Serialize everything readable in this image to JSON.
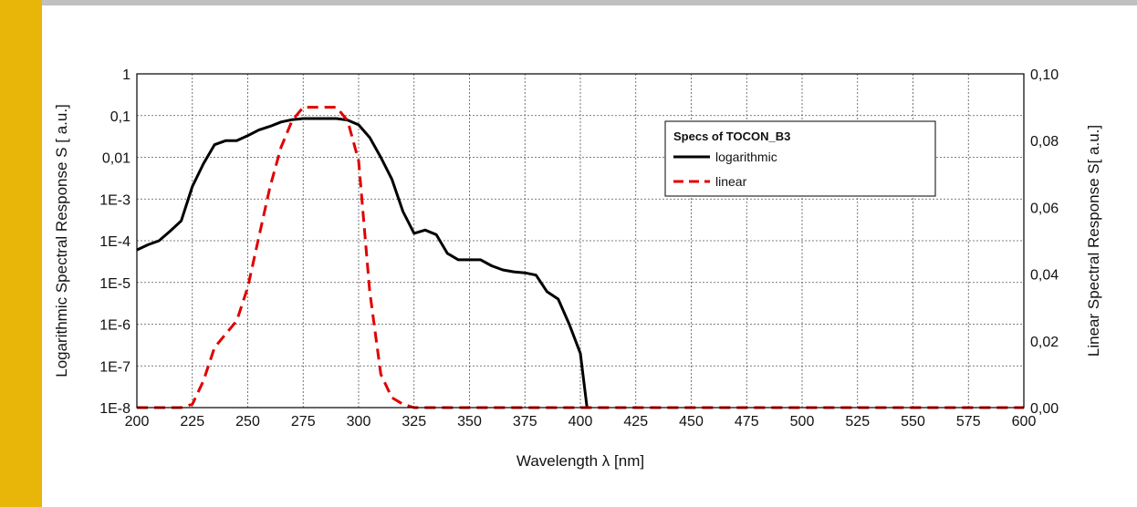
{
  "colors": {
    "accent_bar": "#e8b608",
    "log_series": "#000000",
    "linear_series": "#e00000",
    "grid": "#555555"
  },
  "chart_data": {
    "type": "line",
    "grid": true,
    "x_axis": {
      "label": "Wavelength λ [nm]",
      "range": [
        200,
        600
      ],
      "ticks": [
        200,
        225,
        250,
        275,
        300,
        325,
        350,
        375,
        400,
        425,
        450,
        475,
        500,
        525,
        550,
        575,
        600
      ],
      "tick_labels": [
        "200",
        "225",
        "250",
        "275",
        "300",
        "325",
        "350",
        "375",
        "400",
        "425",
        "450",
        "475",
        "500",
        "525",
        "550",
        "575",
        "600"
      ]
    },
    "y_left": {
      "label": "Logarithmic Spectral Response S [ a.u.]",
      "scale": "log",
      "range": [
        1e-08,
        1
      ],
      "ticks": [
        1e-08,
        1e-07,
        1e-06,
        1e-05,
        0.0001,
        0.001,
        0.01,
        0.1,
        1
      ],
      "tick_labels": [
        "1E-8",
        "1E-7",
        "1E-6",
        "1E-5",
        "1E-4",
        "1E-3",
        "0,01",
        "0,1",
        "1"
      ]
    },
    "y_right": {
      "label": "Linear Spectral Response S[ a.u.]",
      "scale": "linear",
      "range": [
        0,
        0.1
      ],
      "ticks": [
        0,
        0.02,
        0.04,
        0.06,
        0.08,
        0.1
      ],
      "tick_labels": [
        "0,00",
        "0,02",
        "0,04",
        "0,06",
        "0,08",
        "0,10"
      ]
    },
    "legend": {
      "title": "Specs of TOCON_B3",
      "placement": "top-right",
      "entries": [
        "logarithmic",
        "linear"
      ]
    },
    "series": [
      {
        "name": "logarithmic",
        "axis": "left",
        "style": "solid",
        "x": [
          200,
          205,
          210,
          215,
          220,
          225,
          230,
          235,
          240,
          245,
          250,
          255,
          260,
          265,
          270,
          275,
          280,
          285,
          290,
          295,
          300,
          305,
          310,
          315,
          320,
          325,
          330,
          335,
          340,
          345,
          350,
          355,
          360,
          365,
          370,
          375,
          380,
          385,
          390,
          395,
          400,
          403
        ],
        "y": [
          6e-05,
          8e-05,
          0.0001,
          0.00017,
          0.0003,
          0.002,
          0.007,
          0.02,
          0.025,
          0.025,
          0.033,
          0.045,
          0.055,
          0.07,
          0.08,
          0.085,
          0.085,
          0.085,
          0.085,
          0.078,
          0.06,
          0.03,
          0.01,
          0.003,
          0.0005,
          0.00015,
          0.00018,
          0.00014,
          5e-05,
          3.5e-05,
          3.5e-05,
          3.5e-05,
          2.5e-05,
          2e-05,
          1.8e-05,
          1.7e-05,
          1.5e-05,
          6e-06,
          4e-06,
          1e-06,
          2e-07,
          1e-08
        ]
      },
      {
        "name": "linear",
        "axis": "right",
        "style": "dashed",
        "x": [
          200,
          210,
          220,
          225,
          230,
          235,
          240,
          245,
          250,
          255,
          260,
          265,
          270,
          275,
          280,
          285,
          290,
          295,
          300,
          305,
          310,
          315,
          320,
          325,
          330,
          400,
          500,
          600
        ],
        "y": [
          0,
          0,
          0,
          0.001,
          0.008,
          0.018,
          0.022,
          0.026,
          0.036,
          0.051,
          0.066,
          0.078,
          0.086,
          0.09,
          0.09,
          0.09,
          0.09,
          0.086,
          0.074,
          0.035,
          0.01,
          0.003,
          0.001,
          0,
          0,
          0,
          0,
          0
        ]
      }
    ]
  }
}
